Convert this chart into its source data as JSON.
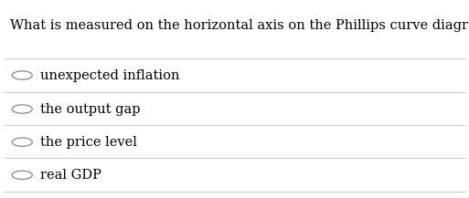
{
  "question": "What is measured on the horizontal axis on the Phillips curve diagram?",
  "options": [
    "unexpected inflation",
    "the output gap",
    "the price level",
    "real GDP"
  ],
  "bg_color": "#ffffff",
  "text_color": "#000000",
  "line_color": "#cccccc",
  "question_fontsize": 10.5,
  "option_fontsize": 10.5,
  "font_family": "serif"
}
